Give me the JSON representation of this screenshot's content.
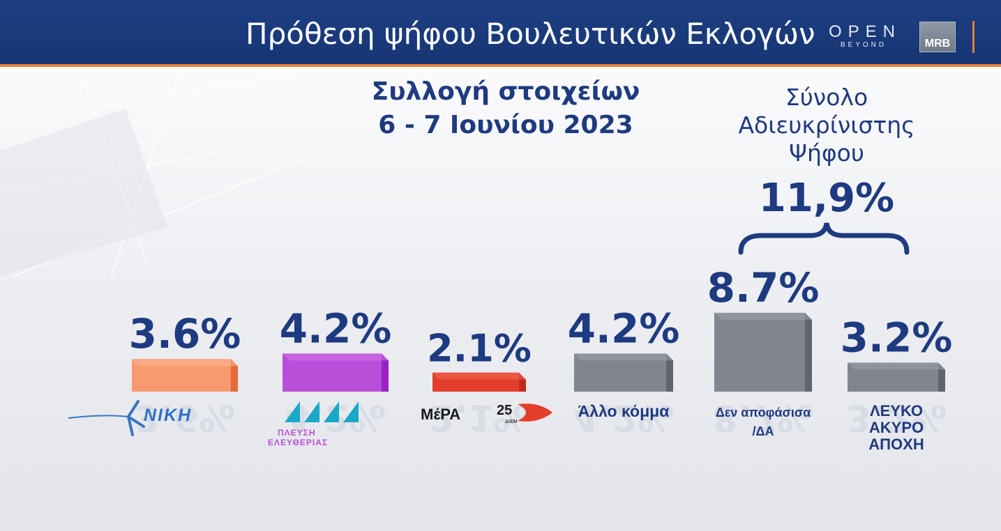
{
  "header": {
    "title": "Πρόθεση ψήφου Βουλευτικών Εκλογών",
    "logo_open": "OPEN",
    "logo_open_sub": "BEYOND",
    "logo_mrb": "MRB"
  },
  "fieldwork": {
    "line1": "Συλλογή στοιχείων",
    "line2": "6 - 7 Ιουνίου 2023"
  },
  "undecided_total": {
    "line1": "Σύνολο",
    "line2": "Αδιευκρίνιστης",
    "line3": "Ψήφου",
    "value": "11,9%"
  },
  "party_logos": {
    "niki": "ΝΙΚΗ",
    "plefsi_line1": "ΠΛΕΥΣΗ",
    "plefsi_line2": "ΕΛΕΥΘΕΡΙΑΣ",
    "mera": "ΜέΡΑ",
    "mera_num": "25",
    "mera_sub": "ΔiEM"
  },
  "colors": {
    "header_bg": "#1d3f82",
    "accent_orange": "#e8803a",
    "text_blue": "#1e3a80"
  },
  "chart_data": {
    "type": "bar",
    "categories": [
      "ΝΙΚΗ",
      "ΠΛΕΥΣΗ ΕΛΕΥΘΕΡΙΑΣ",
      "ΜέΡΑ25",
      "Άλλο κόμμα",
      "Δεν αποφάσισα /ΔΑ",
      "ΛΕΥΚΟ ΑΚΥΡΟ ΑΠΟΧΗ"
    ],
    "values": [
      3.6,
      4.2,
      2.1,
      4.2,
      8.7,
      3.2
    ],
    "value_labels": [
      "3.6%",
      "4.2%",
      "2.1%",
      "4.2%",
      "8.7%",
      "3.2%"
    ],
    "text_labels": [
      "",
      "",
      "",
      "Άλλο κόμμα",
      "Δεν αποφάσισα\n/ΔΑ",
      "ΛΕΥΚΟ\nΑΚΥΡΟ\nΑΠΟΧΗ"
    ],
    "bar_colors": [
      "#f79a6e",
      "#b94ed8",
      "#e23e2a",
      "#80858f",
      "#80858f",
      "#80858f"
    ],
    "bar_side_colors": [
      "#e46a3d",
      "#9b1fc2",
      "#c22b1a",
      "#5f6470",
      "#5f6470",
      "#5f6470"
    ],
    "bar_top_colors": [
      "#fbb795",
      "#cf79e8",
      "#ef6a54",
      "#9ca0a8",
      "#9ca0a8",
      "#9ca0a8"
    ],
    "unit": "%",
    "grid": false,
    "legend": "none"
  }
}
